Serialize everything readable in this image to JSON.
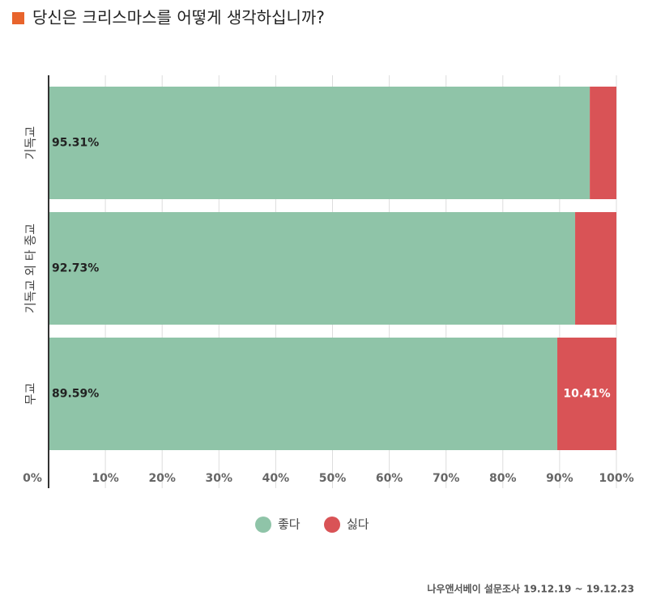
{
  "chart_data": {
    "type": "stacked-bar-horizontal",
    "title": "당신은 크리스마스를 어떻게 생각하십니까?",
    "source": "나우앤서베이 설문조사 19.12.19 ~ 19.12.23",
    "categories": [
      "기독교",
      "기독교 외 타 종교",
      "무교"
    ],
    "series": [
      {
        "name": "좋다",
        "color": "#8fc4a8",
        "values": [
          95.31,
          92.73,
          89.59
        ],
        "value_labels": [
          "95.31%",
          "92.73%",
          "89.59%"
        ]
      },
      {
        "name": "싫다",
        "color": "#d95356",
        "values": [
          4.69,
          7.27,
          10.41
        ],
        "value_labels": [
          null,
          null,
          "10.41%"
        ]
      }
    ],
    "xlim": [
      0,
      100
    ],
    "xticks": [
      {
        "value": 0,
        "label": "0%"
      },
      {
        "value": 10,
        "label": "10%"
      },
      {
        "value": 20,
        "label": "20%"
      },
      {
        "value": 30,
        "label": "30%"
      },
      {
        "value": 40,
        "label": "40%"
      },
      {
        "value": 50,
        "label": "50%"
      },
      {
        "value": 60,
        "label": "60%"
      },
      {
        "value": 70,
        "label": "70%"
      },
      {
        "value": 80,
        "label": "80%"
      },
      {
        "value": 90,
        "label": "90%"
      },
      {
        "value": 100,
        "label": "100%"
      }
    ],
    "grid": true,
    "legend": "bottom"
  }
}
